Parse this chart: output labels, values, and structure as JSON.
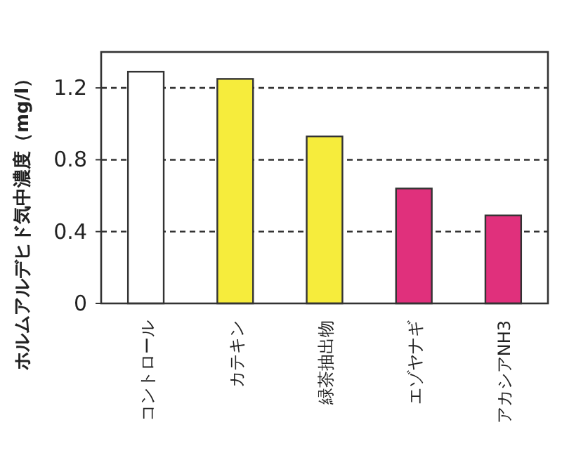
{
  "chart_data": {
    "type": "bar",
    "ylabel": "ホルムアルデヒド気中濃度（mg/l）",
    "categories": [
      "コントロール",
      "カテキン",
      "緑茶抽出物",
      "エゾヤナギ",
      "アカシアNH3"
    ],
    "values": [
      1.29,
      1.25,
      0.93,
      0.64,
      0.49
    ],
    "colors": [
      "#ffffff",
      "#f6ec3c",
      "#f6ec3c",
      "#e0307c",
      "#e0307c"
    ],
    "ylim": [
      0,
      1.4
    ],
    "yticks": [
      0,
      0.4,
      0.8,
      1.2
    ],
    "grid": "y"
  }
}
